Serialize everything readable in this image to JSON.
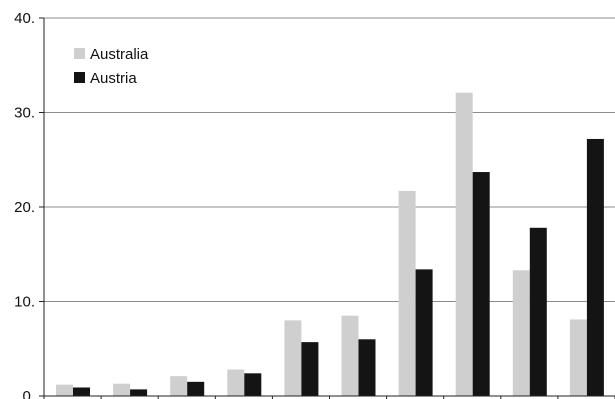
{
  "chart_data": {
    "type": "bar",
    "ylim": [
      0,
      40
    ],
    "y_ticks": [
      "0.",
      "10.",
      "20.",
      "30.",
      "40."
    ],
    "grid": "horizontal",
    "legend_position": "top-left",
    "series": [
      {
        "name": "Australia",
        "color": "#cfcfcf",
        "values": [
          1.2,
          1.3,
          2.1,
          2.8,
          8.0,
          8.5,
          21.7,
          32.1,
          13.3,
          8.1
        ]
      },
      {
        "name": "Austria",
        "color": "#141414",
        "values": [
          0.9,
          0.7,
          1.5,
          2.4,
          5.7,
          6.0,
          13.4,
          23.7,
          17.8,
          27.2
        ]
      }
    ]
  }
}
